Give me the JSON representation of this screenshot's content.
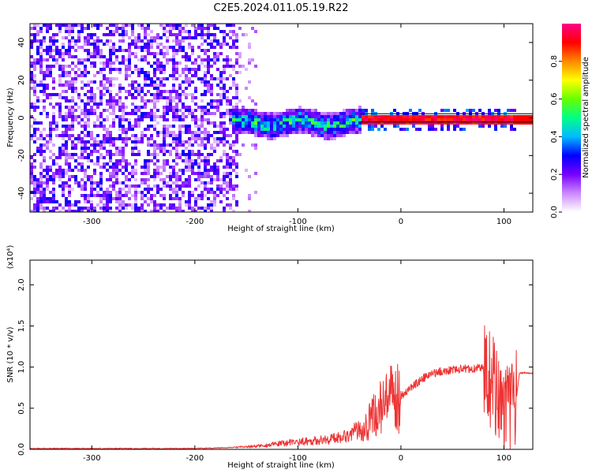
{
  "title": "C2E5.2024.011.05.19.R22",
  "chart_data": [
    {
      "type": "heatmap",
      "xlabel": "Height of straight line (km)",
      "ylabel": "Frequency (Hz)",
      "xlim": [
        -360,
        128
      ],
      "ylim": [
        -50,
        50
      ],
      "x_ticks": [
        -300,
        -200,
        -100,
        0,
        100
      ],
      "y_ticks": [
        -40,
        -20,
        0,
        20,
        40
      ],
      "colorbar": {
        "label": "Normalized spectral amplitude",
        "range": [
          0.0,
          1.0
        ],
        "ticks": [
          0.0,
          0.2,
          0.4,
          0.6,
          0.8
        ],
        "colormap": [
          "#ffffff",
          "#cc88ff",
          "#7700ff",
          "#0000ff",
          "#00bbff",
          "#00ff88",
          "#66ff00",
          "#ffff00",
          "#ff8800",
          "#ff0000",
          "#ff0088"
        ]
      },
      "regions": [
        {
          "x_range": [
            -360,
            -160
          ],
          "freq_range": [
            -50,
            50
          ],
          "amplitude": "low (0.05-0.3), diffuse noise"
        },
        {
          "x_range": [
            -160,
            -40
          ],
          "freq_range": [
            -8,
            8
          ],
          "amplitude": "0.2-0.6, centred near -2 Hz"
        },
        {
          "x_range": [
            -40,
            110
          ],
          "freq_range": [
            -2,
            2
          ],
          "amplitude": "0.8-1.0, narrow line at 0 Hz"
        }
      ]
    },
    {
      "type": "line",
      "xlabel": "Height of straight line (km)",
      "ylabel": "SNR (10 * v/v)",
      "y_multiplier": "(x10⁴)",
      "xlim": [
        -360,
        128
      ],
      "ylim": [
        0,
        2.3
      ],
      "x_ticks": [
        -300,
        -200,
        -100,
        0,
        100
      ],
      "y_ticks": [
        0.0,
        0.5,
        1.0,
        1.5,
        2.0
      ],
      "color": "#ee3333",
      "series": [
        {
          "x": [
            -360,
            -300,
            -250,
            -200,
            -170,
            -150,
            -130,
            -110,
            -90,
            -70,
            -50,
            -40,
            -30,
            -20,
            -10,
            0,
            10,
            20,
            30,
            40,
            50,
            60,
            70,
            80,
            85,
            90,
            95,
            100,
            105,
            110,
            115,
            120,
            128
          ],
          "y": [
            0.01,
            0.01,
            0.01,
            0.01,
            0.02,
            0.03,
            0.05,
            0.08,
            0.1,
            0.12,
            0.18,
            0.25,
            0.35,
            0.5,
            0.6,
            0.65,
            0.75,
            0.85,
            0.92,
            0.95,
            0.97,
            0.98,
            0.98,
            1.0,
            0.9,
            0.8,
            0.7,
            0.3,
            0.5,
            0.4,
            0.93,
            0.93,
            0.92
          ]
        }
      ]
    }
  ]
}
